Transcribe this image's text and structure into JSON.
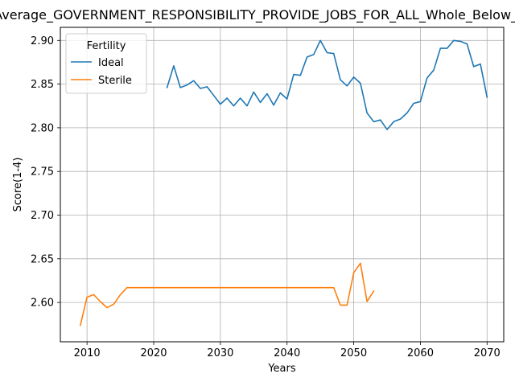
{
  "chart_data": {
    "type": "line",
    "title": "Average_GOVERNMENT_RESPONSIBILITY_PROVIDE_JOBS_FOR_ALL_Whole_Below_Average",
    "xlabel": "Years",
    "ylabel": "Score(1-4)",
    "xlim": [
      2006,
      2072.5
    ],
    "ylim": [
      2.555,
      2.915
    ],
    "x_ticks": [
      2010,
      2020,
      2030,
      2040,
      2050,
      2060,
      2070
    ],
    "x_tick_labels": [
      "2010",
      "2020",
      "2030",
      "2040",
      "2050",
      "2060",
      "2070"
    ],
    "y_ticks": [
      2.6,
      2.65,
      2.7,
      2.75,
      2.8,
      2.85,
      2.9
    ],
    "y_tick_labels": [
      "2.60",
      "2.65",
      "2.70",
      "2.75",
      "2.80",
      "2.85",
      "2.90"
    ],
    "grid": true,
    "legend": {
      "title": "Fertility",
      "position": "top-left"
    },
    "series": [
      {
        "name": "Ideal",
        "color": "#1f77b4",
        "x": [
          2022,
          2023,
          2024,
          2025,
          2026,
          2027,
          2028,
          2029,
          2030,
          2031,
          2032,
          2033,
          2034,
          2035,
          2036,
          2037,
          2038,
          2039,
          2040,
          2041,
          2042,
          2043,
          2044,
          2045,
          2046,
          2047,
          2048,
          2049,
          2050,
          2051,
          2052,
          2053,
          2054,
          2055,
          2056,
          2057,
          2058,
          2059,
          2060,
          2061,
          2062,
          2063,
          2064,
          2065,
          2066,
          2067,
          2068,
          2069,
          2070
        ],
        "y": [
          2.846,
          2.871,
          2.846,
          2.849,
          2.854,
          2.845,
          2.847,
          2.837,
          2.827,
          2.834,
          2.825,
          2.834,
          2.825,
          2.841,
          2.829,
          2.839,
          2.826,
          2.84,
          2.833,
          2.861,
          2.86,
          2.881,
          2.884,
          2.9,
          2.886,
          2.885,
          2.855,
          2.848,
          2.858,
          2.851,
          2.817,
          2.807,
          2.809,
          2.798,
          2.807,
          2.81,
          2.817,
          2.828,
          2.83,
          2.857,
          2.866,
          2.891,
          2.891,
          2.9,
          2.899,
          2.896,
          2.87,
          2.873,
          2.835
        ]
      },
      {
        "name": "Sterile",
        "color": "#ff7f0e",
        "x": [
          2009,
          2010,
          2011,
          2012,
          2013,
          2014,
          2015,
          2016,
          2017,
          2018,
          2019,
          2020,
          2021,
          2022,
          2023,
          2024,
          2025,
          2026,
          2027,
          2028,
          2029,
          2030,
          2031,
          2032,
          2033,
          2034,
          2035,
          2036,
          2037,
          2038,
          2039,
          2040,
          2041,
          2042,
          2043,
          2044,
          2045,
          2046,
          2047,
          2048,
          2049,
          2050,
          2051,
          2052,
          2053
        ],
        "y": [
          2.574,
          2.606,
          2.609,
          2.601,
          2.594,
          2.598,
          2.609,
          2.617,
          2.617,
          2.617,
          2.617,
          2.617,
          2.617,
          2.617,
          2.617,
          2.617,
          2.617,
          2.617,
          2.617,
          2.617,
          2.617,
          2.617,
          2.617,
          2.617,
          2.617,
          2.617,
          2.617,
          2.617,
          2.617,
          2.617,
          2.617,
          2.617,
          2.617,
          2.617,
          2.617,
          2.617,
          2.617,
          2.617,
          2.617,
          2.597,
          2.597,
          2.634,
          2.645,
          2.601,
          2.613
        ]
      }
    ]
  }
}
